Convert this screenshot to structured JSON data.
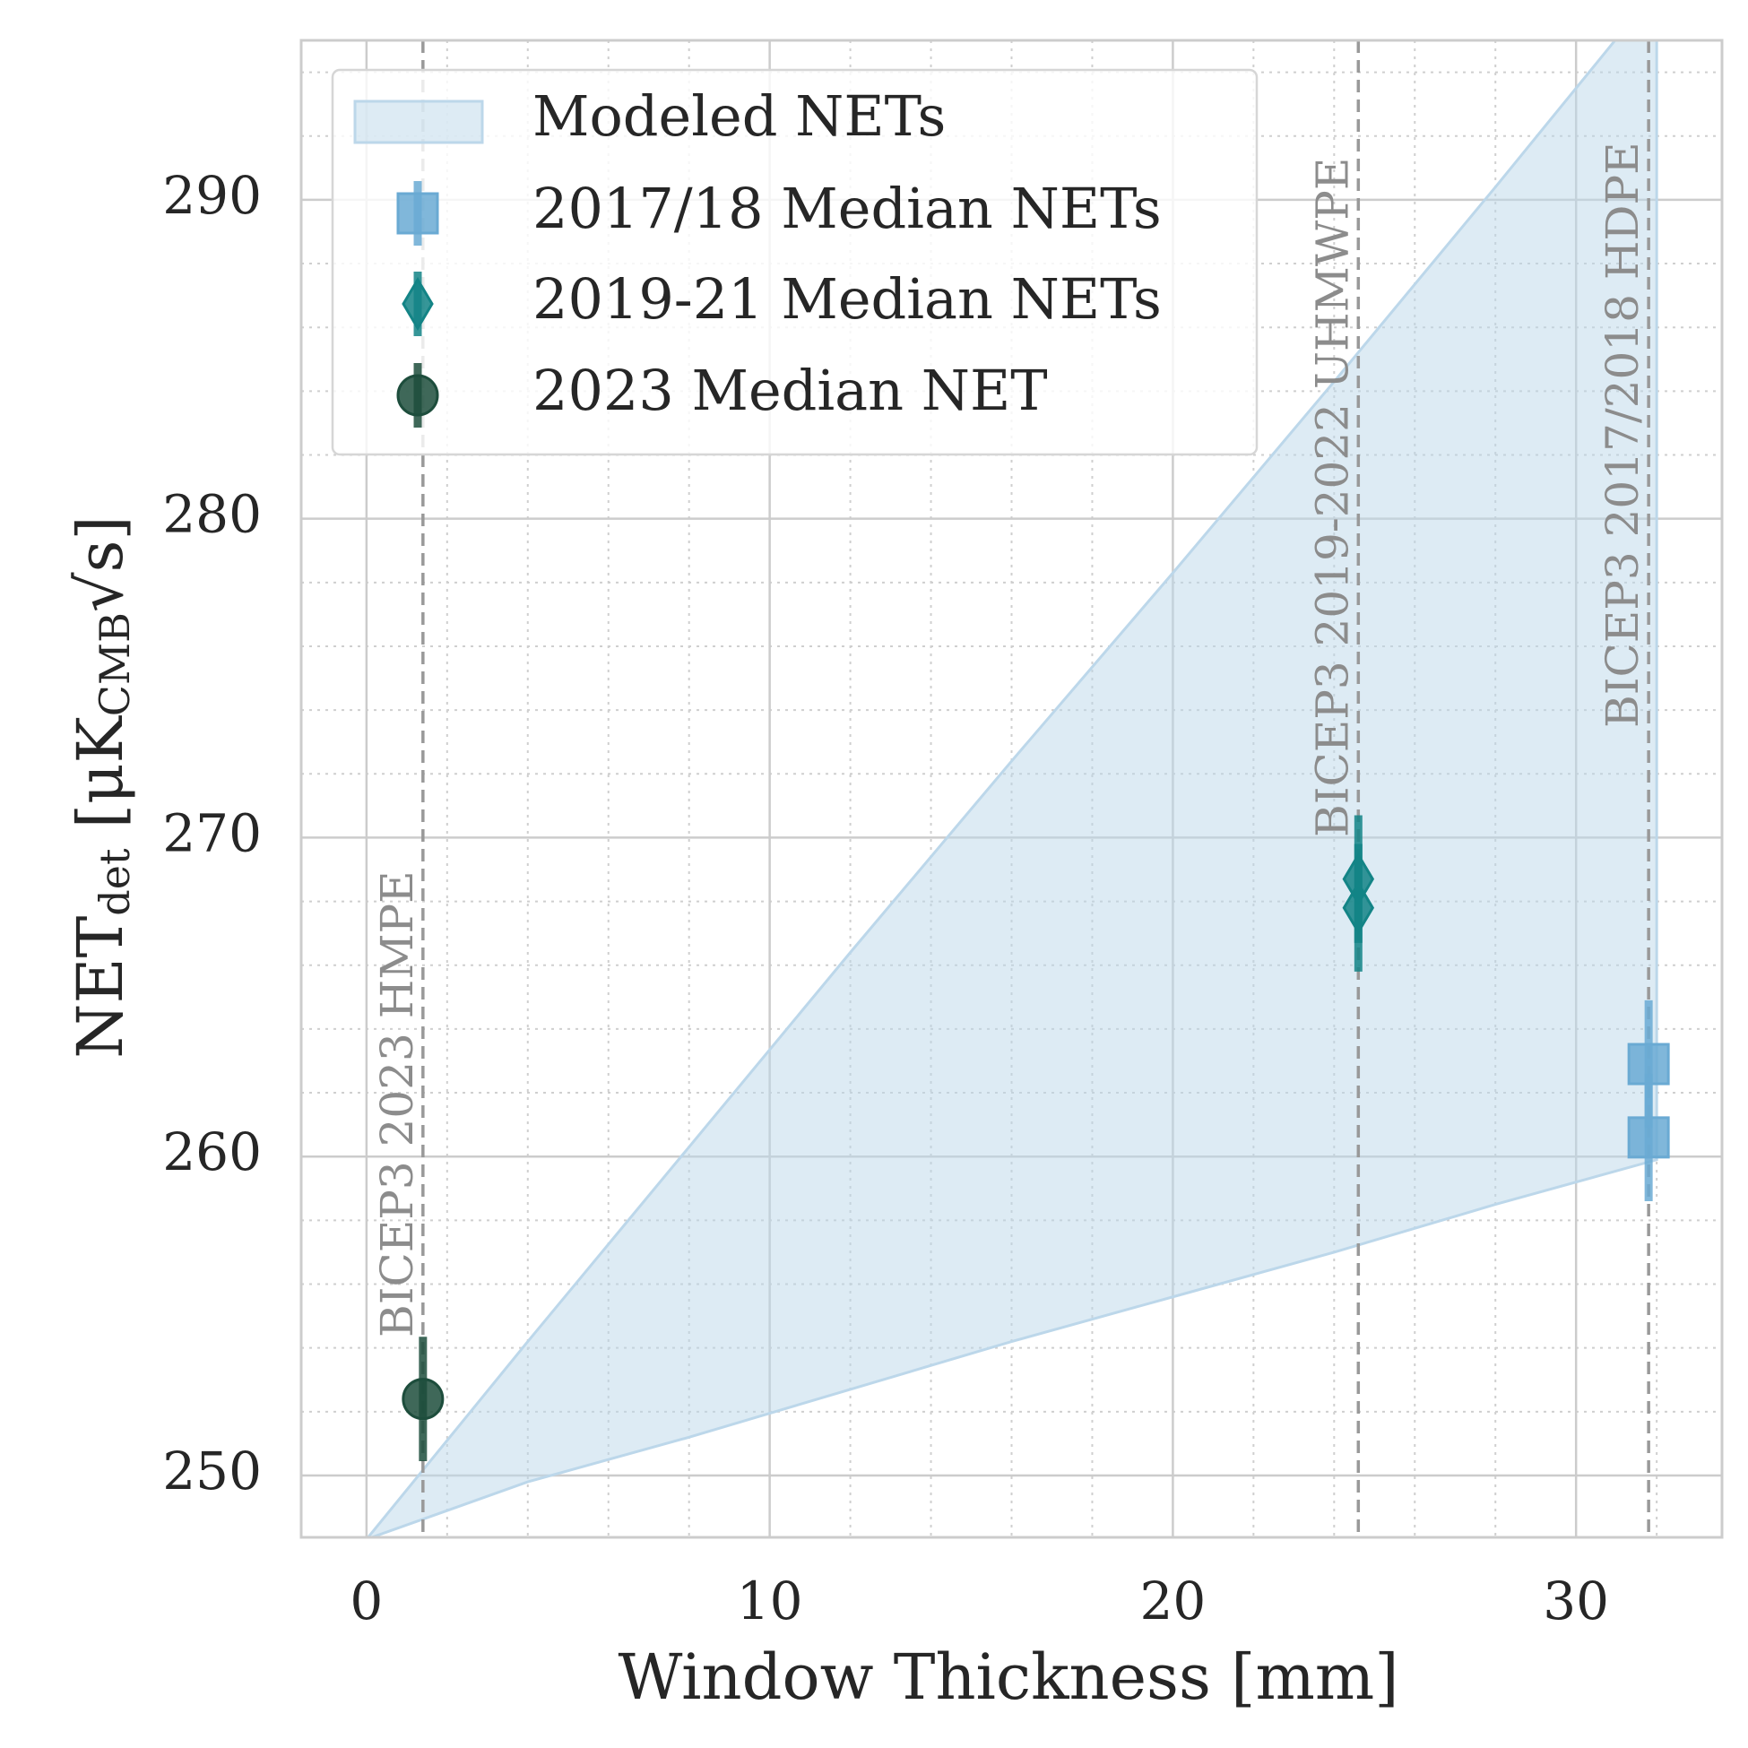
{
  "chart_data": {
    "type": "errorbar",
    "xlabel": "Window Thickness [mm]",
    "ylabel_parts": [
      "NET",
      "det",
      " [μK",
      "CMB",
      "√s]"
    ],
    "xlim": [
      -1.62,
      33.62
    ],
    "ylim": [
      248.06,
      295.0
    ],
    "xticks": [
      0,
      10,
      20,
      30
    ],
    "yticks": [
      250,
      260,
      270,
      280,
      290
    ],
    "xminorticks": [
      2,
      4,
      6,
      8,
      12,
      14,
      16,
      18,
      22,
      24,
      26,
      28,
      32
    ],
    "yminorticks": [
      252,
      254,
      256,
      258,
      262,
      264,
      266,
      268,
      272,
      274,
      276,
      278,
      282,
      284,
      286,
      288,
      292,
      294
    ],
    "grid": true,
    "legend": "upper left",
    "band": {
      "name": "Modeled NETs",
      "color": "#bcd7ea",
      "x": [
        0,
        4,
        8,
        12,
        16,
        20,
        24,
        28,
        32
      ],
      "upper": [
        248,
        254.2,
        260.3,
        266.4,
        272.4,
        278.3,
        284.3,
        290.4,
        296.6
      ],
      "lower": [
        248,
        249.8,
        251.2,
        252.7,
        254.2,
        255.6,
        257.0,
        258.5,
        259.9
      ]
    },
    "series": [
      {
        "name": "2017/18 Median NETs",
        "marker": "square",
        "color": "#6aaad3",
        "x": [
          31.8,
          31.8
        ],
        "values": [
          262.9,
          260.6
        ],
        "errors": [
          2.0,
          2.0
        ]
      },
      {
        "name": "2019-21 Median NETs",
        "marker": "diamond",
        "color": "#138486",
        "x": [
          24.6,
          24.6
        ],
        "values": [
          268.7,
          267.8
        ],
        "errors": [
          2.0,
          2.0
        ]
      },
      {
        "name": "2023 Median NET",
        "marker": "circle",
        "color": "#1d4d3c",
        "x": [
          1.4
        ],
        "values": [
          252.4
        ],
        "errors": [
          1.95
        ]
      }
    ],
    "annotations": [
      {
        "x": 1.4,
        "text": "BICEP3 2023 HMPE"
      },
      {
        "x": 24.6,
        "text": "BICEP3 2019-2022 UHMWPE"
      },
      {
        "x": 31.8,
        "text": "BICEP3 2017/2018 HDPE"
      }
    ]
  }
}
